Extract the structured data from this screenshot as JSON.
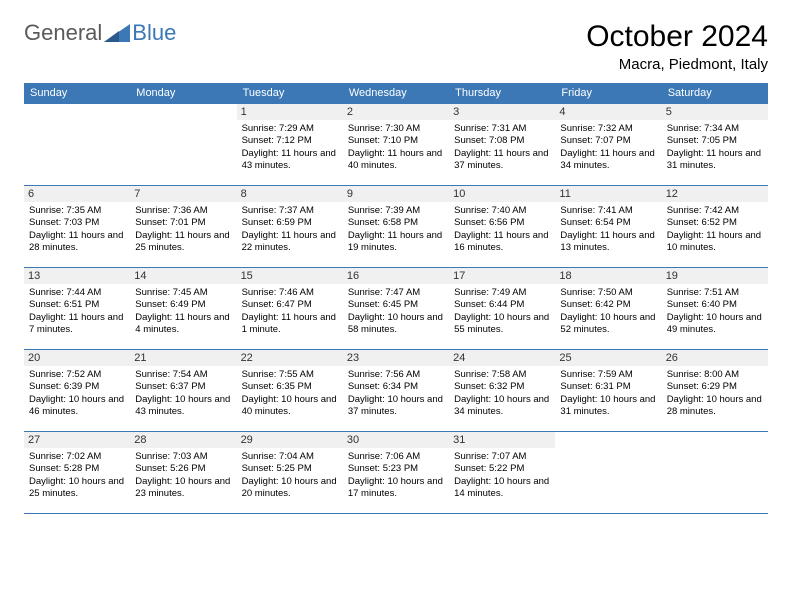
{
  "logo": {
    "part1": "General",
    "part2": "Blue"
  },
  "title": "October 2024",
  "location": "Macra, Piedmont, Italy",
  "colors": {
    "header_bg": "#3b78b5",
    "header_fg": "#ffffff",
    "border": "#3b78b5",
    "daynum_bg": "#f0f0f0",
    "logo_gray": "#5a5a5a",
    "logo_blue": "#3b78b5"
  },
  "day_headers": [
    "Sunday",
    "Monday",
    "Tuesday",
    "Wednesday",
    "Thursday",
    "Friday",
    "Saturday"
  ],
  "weeks": [
    [
      null,
      null,
      {
        "n": "1",
        "sr": "7:29 AM",
        "ss": "7:12 PM",
        "dl": "11 hours and 43 minutes."
      },
      {
        "n": "2",
        "sr": "7:30 AM",
        "ss": "7:10 PM",
        "dl": "11 hours and 40 minutes."
      },
      {
        "n": "3",
        "sr": "7:31 AM",
        "ss": "7:08 PM",
        "dl": "11 hours and 37 minutes."
      },
      {
        "n": "4",
        "sr": "7:32 AM",
        "ss": "7:07 PM",
        "dl": "11 hours and 34 minutes."
      },
      {
        "n": "5",
        "sr": "7:34 AM",
        "ss": "7:05 PM",
        "dl": "11 hours and 31 minutes."
      }
    ],
    [
      {
        "n": "6",
        "sr": "7:35 AM",
        "ss": "7:03 PM",
        "dl": "11 hours and 28 minutes."
      },
      {
        "n": "7",
        "sr": "7:36 AM",
        "ss": "7:01 PM",
        "dl": "11 hours and 25 minutes."
      },
      {
        "n": "8",
        "sr": "7:37 AM",
        "ss": "6:59 PM",
        "dl": "11 hours and 22 minutes."
      },
      {
        "n": "9",
        "sr": "7:39 AM",
        "ss": "6:58 PM",
        "dl": "11 hours and 19 minutes."
      },
      {
        "n": "10",
        "sr": "7:40 AM",
        "ss": "6:56 PM",
        "dl": "11 hours and 16 minutes."
      },
      {
        "n": "11",
        "sr": "7:41 AM",
        "ss": "6:54 PM",
        "dl": "11 hours and 13 minutes."
      },
      {
        "n": "12",
        "sr": "7:42 AM",
        "ss": "6:52 PM",
        "dl": "11 hours and 10 minutes."
      }
    ],
    [
      {
        "n": "13",
        "sr": "7:44 AM",
        "ss": "6:51 PM",
        "dl": "11 hours and 7 minutes."
      },
      {
        "n": "14",
        "sr": "7:45 AM",
        "ss": "6:49 PM",
        "dl": "11 hours and 4 minutes."
      },
      {
        "n": "15",
        "sr": "7:46 AM",
        "ss": "6:47 PM",
        "dl": "11 hours and 1 minute."
      },
      {
        "n": "16",
        "sr": "7:47 AM",
        "ss": "6:45 PM",
        "dl": "10 hours and 58 minutes."
      },
      {
        "n": "17",
        "sr": "7:49 AM",
        "ss": "6:44 PM",
        "dl": "10 hours and 55 minutes."
      },
      {
        "n": "18",
        "sr": "7:50 AM",
        "ss": "6:42 PM",
        "dl": "10 hours and 52 minutes."
      },
      {
        "n": "19",
        "sr": "7:51 AM",
        "ss": "6:40 PM",
        "dl": "10 hours and 49 minutes."
      }
    ],
    [
      {
        "n": "20",
        "sr": "7:52 AM",
        "ss": "6:39 PM",
        "dl": "10 hours and 46 minutes."
      },
      {
        "n": "21",
        "sr": "7:54 AM",
        "ss": "6:37 PM",
        "dl": "10 hours and 43 minutes."
      },
      {
        "n": "22",
        "sr": "7:55 AM",
        "ss": "6:35 PM",
        "dl": "10 hours and 40 minutes."
      },
      {
        "n": "23",
        "sr": "7:56 AM",
        "ss": "6:34 PM",
        "dl": "10 hours and 37 minutes."
      },
      {
        "n": "24",
        "sr": "7:58 AM",
        "ss": "6:32 PM",
        "dl": "10 hours and 34 minutes."
      },
      {
        "n": "25",
        "sr": "7:59 AM",
        "ss": "6:31 PM",
        "dl": "10 hours and 31 minutes."
      },
      {
        "n": "26",
        "sr": "8:00 AM",
        "ss": "6:29 PM",
        "dl": "10 hours and 28 minutes."
      }
    ],
    [
      {
        "n": "27",
        "sr": "7:02 AM",
        "ss": "5:28 PM",
        "dl": "10 hours and 25 minutes."
      },
      {
        "n": "28",
        "sr": "7:03 AM",
        "ss": "5:26 PM",
        "dl": "10 hours and 23 minutes."
      },
      {
        "n": "29",
        "sr": "7:04 AM",
        "ss": "5:25 PM",
        "dl": "10 hours and 20 minutes."
      },
      {
        "n": "30",
        "sr": "7:06 AM",
        "ss": "5:23 PM",
        "dl": "10 hours and 17 minutes."
      },
      {
        "n": "31",
        "sr": "7:07 AM",
        "ss": "5:22 PM",
        "dl": "10 hours and 14 minutes."
      },
      null,
      null
    ]
  ],
  "labels": {
    "sunrise": "Sunrise:",
    "sunset": "Sunset:",
    "daylight": "Daylight:"
  }
}
